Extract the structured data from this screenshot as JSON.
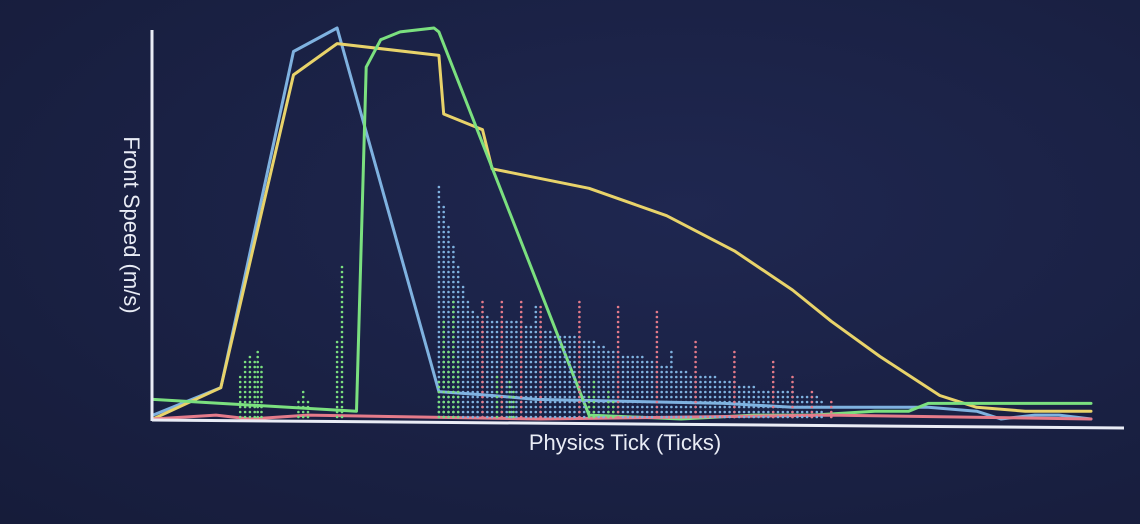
{
  "chart_data": {
    "type": "line",
    "title": "",
    "xlabel": "Physics Tick (Ticks)",
    "ylabel": "Front Speed (m/s)",
    "xlim": [
      0,
      1000
    ],
    "ylim": [
      0,
      100
    ],
    "grid": false,
    "legend": "none",
    "series": [
      {
        "color": "#7fb2e0",
        "style": "line",
        "x": [
          0,
          70,
          145,
          190,
          295,
          350,
          395,
          590,
          660,
          800,
          850,
          875,
          910,
          935,
          968
        ],
        "y": [
          1,
          8,
          94,
          100,
          7,
          6,
          5,
          4,
          3,
          3,
          2,
          0,
          1,
          1,
          0
        ]
      },
      {
        "color": "#e8d36a",
        "style": "line",
        "x": [
          0,
          70,
          145,
          190,
          295,
          300,
          340,
          350,
          450,
          530,
          600,
          660,
          700,
          750,
          812,
          850,
          900,
          968
        ],
        "y": [
          0,
          8,
          88,
          96,
          93,
          78,
          74,
          64,
          59,
          52,
          43,
          33,
          25,
          16,
          6,
          3,
          2,
          2
        ]
      },
      {
        "color": "#7be07f",
        "style": "line",
        "x": [
          0,
          70,
          210,
          220,
          235,
          255,
          290,
          295,
          450,
          545,
          620,
          680,
          745,
          780,
          800,
          870,
          968
        ],
        "y": [
          5,
          4,
          2,
          90,
          97,
          99,
          100,
          99,
          1,
          0,
          1,
          1,
          2,
          2,
          4,
          4,
          4
        ]
      },
      {
        "color": "#e57b8a",
        "style": "line",
        "x": [
          0,
          65,
          100,
          160,
          400,
          700,
          968
        ],
        "y": [
          0,
          1,
          0,
          1,
          0,
          1,
          0
        ]
      },
      {
        "color": "#7fb2e0",
        "style": "scatter",
        "x": [
          295,
          300,
          305,
          310,
          315,
          320,
          325,
          330,
          335,
          340,
          345,
          350,
          355,
          360,
          365,
          370,
          375,
          380,
          385,
          390,
          395,
          400,
          405,
          410,
          415,
          420,
          425,
          430,
          435,
          440,
          445,
          450,
          455,
          460,
          465,
          470,
          475,
          480,
          485,
          490,
          495,
          500,
          505,
          510,
          515,
          520,
          525,
          530,
          535,
          540,
          545,
          550,
          555,
          560,
          565,
          570,
          575,
          580,
          585,
          590,
          595,
          600,
          605,
          610,
          615,
          620,
          625,
          630,
          635,
          640,
          645,
          650,
          655,
          660,
          665,
          670,
          675,
          680,
          685,
          690
        ],
        "y": [
          60,
          55,
          50,
          45,
          40,
          35,
          30,
          28,
          27,
          27,
          27,
          26,
          26,
          26,
          26,
          25,
          25,
          25,
          24,
          24,
          29,
          24,
          23,
          23,
          22,
          22,
          22,
          21,
          21,
          21,
          20,
          20,
          20,
          19,
          19,
          18,
          18,
          18,
          17,
          17,
          16,
          16,
          16,
          15,
          15,
          14,
          14,
          14,
          18,
          13,
          13,
          13,
          12,
          12,
          12,
          11,
          11,
          11,
          10,
          10,
          10,
          10,
          9,
          9,
          9,
          9,
          8,
          8,
          8,
          8,
          7,
          7,
          7,
          7,
          6,
          6,
          6,
          6,
          6,
          5
        ]
      },
      {
        "color": "#7be07f",
        "style": "scatter",
        "x": [
          90,
          95,
          100,
          105,
          108,
          112,
          150,
          155,
          160,
          190,
          195,
          295,
          300,
          305,
          310,
          315,
          355,
          360,
          368,
          372,
          450,
          455,
          470,
          475
        ],
        "y": [
          12,
          15,
          17,
          15,
          18,
          14,
          5,
          7,
          5,
          20,
          40,
          10,
          25,
          18,
          30,
          15,
          12,
          9,
          10,
          7,
          6,
          10,
          8,
          5
        ]
      },
      {
        "color": "#e57b8a",
        "style": "scatter",
        "x": [
          340,
          360,
          380,
          400,
          440,
          480,
          520,
          560,
          600,
          640,
          660,
          680,
          700
        ],
        "y": [
          31,
          30,
          30,
          29,
          31,
          29,
          28,
          20,
          18,
          15,
          12,
          8,
          5
        ]
      }
    ]
  }
}
